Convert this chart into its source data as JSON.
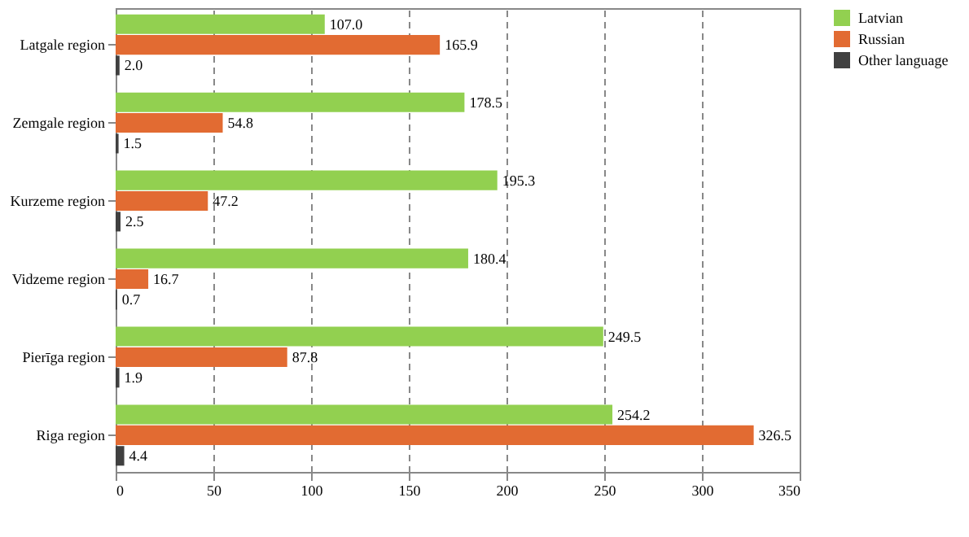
{
  "chart_data": {
    "type": "bar",
    "orientation": "horizontal",
    "categories": [
      "Latgale region",
      "Zemgale region",
      "Kurzeme region",
      "Vidzeme region",
      "Pierīga region",
      "Riga region"
    ],
    "series": [
      {
        "name": "Latvian",
        "color": "#92d050",
        "values": [
          107.0,
          178.5,
          195.3,
          180.4,
          249.5,
          254.2
        ],
        "value_labels": [
          "107.0",
          "178.5",
          "195.3",
          "180.4",
          "249.5",
          "254.2"
        ]
      },
      {
        "name": "Russian",
        "color": "#e26b32",
        "values": [
          165.9,
          54.8,
          47.2,
          16.7,
          87.8,
          326.5
        ],
        "value_labels": [
          "165.9",
          "54.8",
          "47.2",
          "16.7",
          "87.8",
          "326.5"
        ]
      },
      {
        "name": "Other language",
        "color": "#404040",
        "values": [
          2.0,
          1.5,
          2.5,
          0.7,
          1.9,
          4.4
        ],
        "value_labels": [
          "2.0",
          "1.5",
          "2.5",
          "0.7",
          "1.9",
          "4.4"
        ]
      }
    ],
    "xlim": [
      0,
      350
    ],
    "xticks": [
      0,
      50,
      100,
      150,
      200,
      250,
      300,
      350
    ],
    "grid": "x",
    "legend": "right"
  }
}
